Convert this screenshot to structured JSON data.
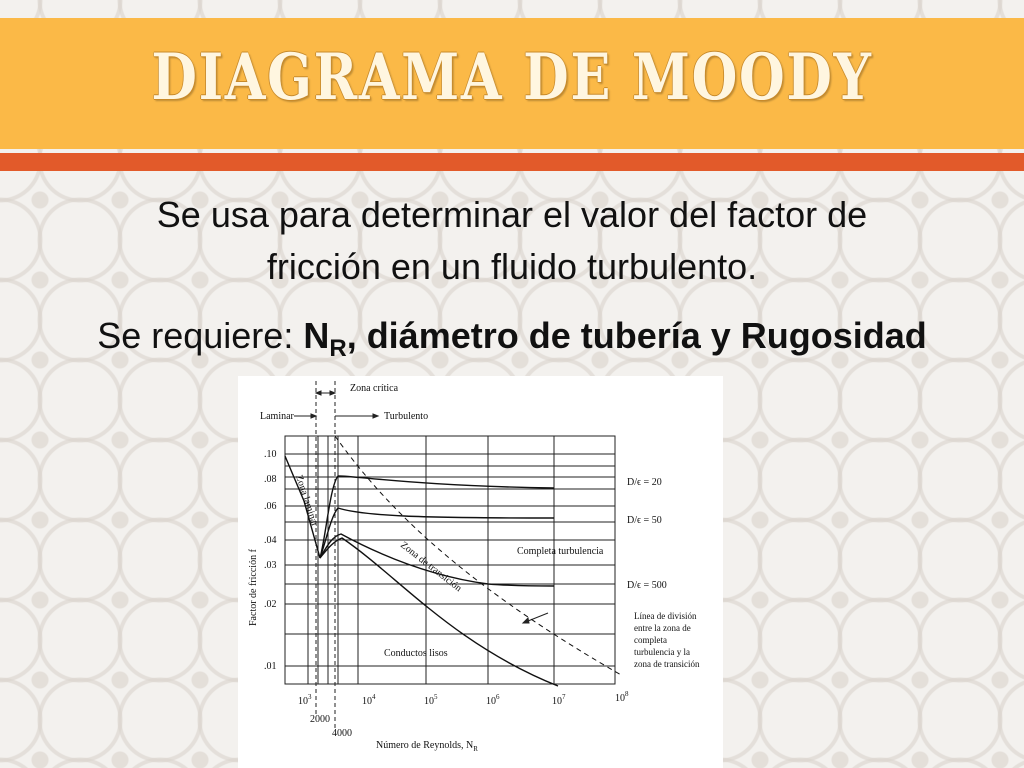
{
  "slide": {
    "title": "DIAGRAMA DE MOODY",
    "line1": "Se usa para determinar el valor del factor de",
    "line2": "fricción en un fluido turbulento.",
    "line3_prefix": "Se requiere",
    "line3_colon": ":",
    "line3_n": "N",
    "line3_sub": "R",
    "line3_rest": ", diámetro de tubería y Rugosidad",
    "colors": {
      "header": "#fbb947",
      "stripe": "#e25a2a",
      "title": "#fff6e0",
      "text": "#111111"
    }
  },
  "diagram": {
    "labels": {
      "zona_critica": "Zona crítica",
      "laminar": "Laminar",
      "turbulento": "Turbulento",
      "zona_laminar": "Zona laminar",
      "zona_transicion": "Zona de transición",
      "completa_turbulencia": "Completa turbulencia",
      "conductos_lisos": "Conductos lisos",
      "de_20": "D/ϵ = 20",
      "de_50": "D/ϵ = 50",
      "de_500": "D/ϵ = 500",
      "division_1": "Línea de división",
      "division_2": "entre la zona de",
      "division_3": "completa",
      "division_4": "turbulencia y la",
      "division_5": "zona de transición",
      "y_axis": "Factor de fricción f",
      "x_axis_prefix": "Número de Reynolds, N",
      "x_axis_sub": "R"
    },
    "y_ticks": [
      ".10",
      ".08",
      ".06",
      ".04",
      ".03",
      ".02",
      ".01"
    ],
    "x_ticks": [
      {
        "base": "10",
        "exp": "3"
      },
      {
        "base": "10",
        "exp": "4"
      },
      {
        "base": "10",
        "exp": "5"
      },
      {
        "base": "10",
        "exp": "6"
      },
      {
        "base": "10",
        "exp": "7"
      },
      {
        "base": "10",
        "exp": "8"
      }
    ],
    "x_ticks_extra": [
      "2000",
      "4000"
    ]
  }
}
